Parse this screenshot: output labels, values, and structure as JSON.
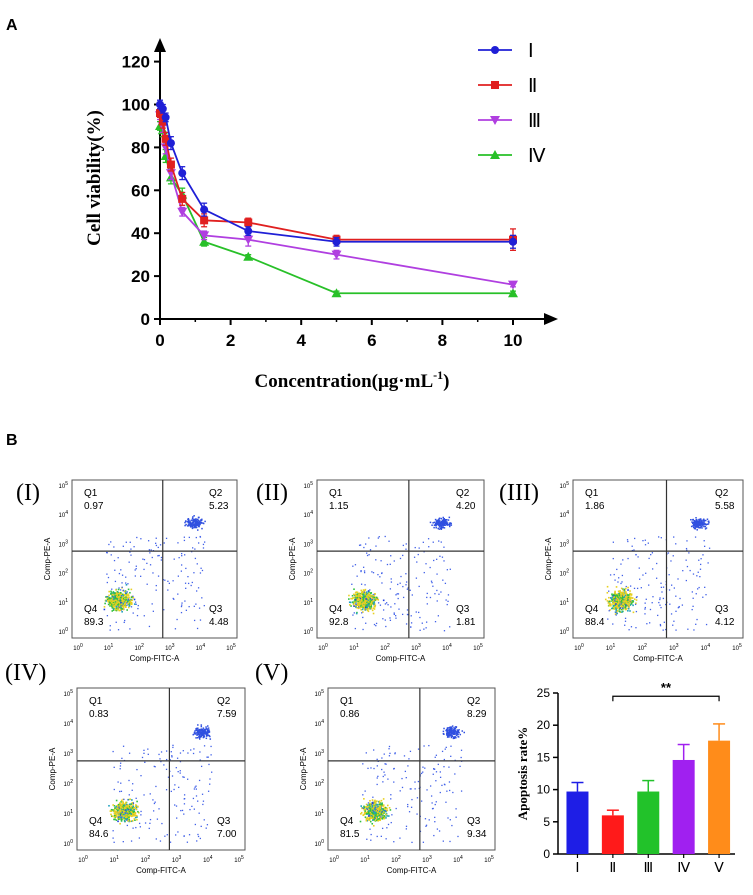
{
  "panels": {
    "a_label": "A",
    "b_label": "B"
  },
  "chart_data": [
    {
      "type": "line",
      "panel": "A",
      "title": "",
      "xlabel": "Concentration(μg·mL",
      "xlabel_sup": "-1",
      "xlabel_close": ")",
      "ylabel": "Cell viability(%)",
      "xlim": [
        0,
        11
      ],
      "ylim": [
        0,
        125
      ],
      "xticks": [
        0,
        2,
        4,
        6,
        8,
        10
      ],
      "yticks": [
        0,
        20,
        40,
        60,
        80,
        100,
        120
      ],
      "legend_position": "top-right",
      "x": [
        0,
        0.08,
        0.16,
        0.31,
        0.63,
        1.25,
        2.5,
        5,
        10
      ],
      "series": [
        {
          "name": "Ⅰ",
          "color": "#1f1fd6",
          "marker": "circle",
          "values": [
            100,
            98,
            94,
            82,
            68,
            51,
            41,
            36,
            36
          ],
          "errors": [
            2,
            2,
            2,
            3,
            3,
            3,
            2,
            2,
            3
          ]
        },
        {
          "name": "Ⅱ",
          "color": "#e02020",
          "marker": "square",
          "values": [
            96,
            92,
            84,
            72,
            56,
            46,
            45,
            37,
            37
          ],
          "errors": [
            2,
            3,
            3,
            3,
            3,
            3,
            2,
            2,
            5
          ]
        },
        {
          "name": "Ⅲ",
          "color": "#b03fe0",
          "marker": "triangle-down",
          "values": [
            95,
            90,
            80,
            68,
            50,
            39,
            37,
            30,
            16
          ],
          "errors": [
            2,
            3,
            3,
            3,
            2,
            2,
            3,
            2,
            1
          ]
        },
        {
          "name": "Ⅳ",
          "color": "#28c028",
          "marker": "triangle-up",
          "values": [
            90,
            88,
            76,
            66,
            58,
            36,
            29,
            12,
            12
          ],
          "errors": [
            2,
            3,
            3,
            3,
            3,
            2,
            1,
            1,
            1
          ]
        }
      ]
    },
    {
      "type": "scatter",
      "panel": "B",
      "subtype": "flow-cytometry-quadrants",
      "xlabel": "Comp-FITC-A",
      "ylabel": "Comp-PE-A",
      "tick_base": "10",
      "x_exponents": [
        "0",
        "1",
        "2",
        "3",
        "4",
        "5"
      ],
      "y_exponents": [
        "0",
        "1",
        "2",
        "3",
        "4",
        "5"
      ],
      "plots": [
        {
          "label": "(I)",
          "q1": "0.97",
          "q2": "5.23",
          "q3": "4.48",
          "q4": "89.3"
        },
        {
          "label": "(II)",
          "q1": "1.15",
          "q2": "4.20",
          "q3": "1.81",
          "q4": "92.8"
        },
        {
          "label": "(III)",
          "q1": "1.86",
          "q2": "5.58",
          "q3": "4.12",
          "q4": "88.4"
        },
        {
          "label": "(IV)",
          "q1": "0.83",
          "q2": "7.59",
          "q3": "7.00",
          "q4": "84.6"
        },
        {
          "label": "(V)",
          "q1": "0.86",
          "q2": "8.29",
          "q3": "9.34",
          "q4": "81.5"
        }
      ],
      "quadrant_names": [
        "Q1",
        "Q2",
        "Q3",
        "Q4"
      ]
    },
    {
      "type": "bar",
      "panel": "B",
      "title": "",
      "xlabel": "",
      "ylabel": "Apoptosis rate%",
      "ylim": [
        0,
        25
      ],
      "yticks": [
        0,
        5,
        10,
        15,
        20,
        25
      ],
      "categories": [
        "Ⅰ",
        "Ⅱ",
        "Ⅲ",
        "Ⅳ",
        "Ⅴ"
      ],
      "values": [
        9.7,
        6.0,
        9.7,
        14.6,
        17.6
      ],
      "errors": [
        1.4,
        0.8,
        1.7,
        2.4,
        2.6
      ],
      "colors": [
        "#1e1ee6",
        "#ff1a1a",
        "#22c22a",
        "#a020f0",
        "#ff8c1a"
      ],
      "significance": {
        "from": "Ⅱ",
        "to": "Ⅴ",
        "label": "**"
      }
    }
  ]
}
